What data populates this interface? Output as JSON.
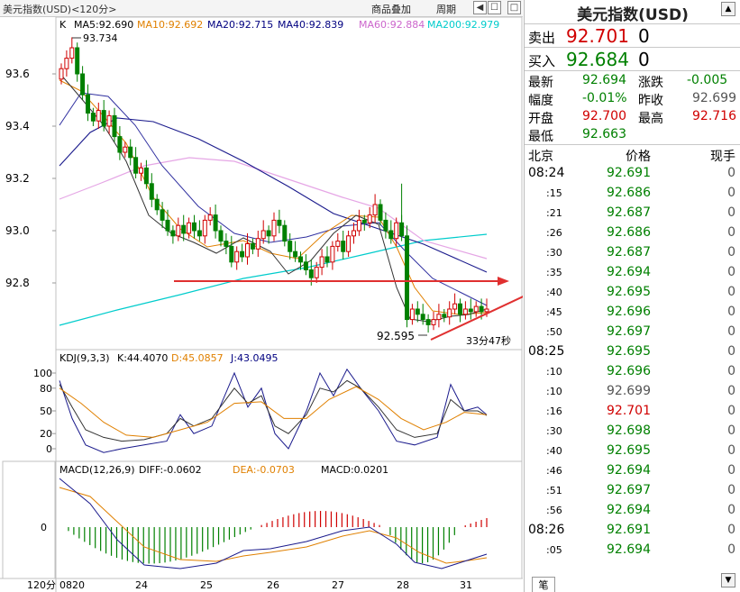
{
  "window": {
    "title": "美元指数(USD)<120分>",
    "overlay_button": "商品叠加",
    "period_button": "周期"
  },
  "main_chart": {
    "label": "K",
    "ma_legend": [
      {
        "text": "MA5:92.690",
        "color": "#000000"
      },
      {
        "text": "MA10:92.692",
        "color": "#e08000"
      },
      {
        "text": "MA20:92.715",
        "color": "#000080"
      },
      {
        "text": "MA40:92.839",
        "color": "#000080"
      },
      {
        "text": "MA60:92.884",
        "color": "#cc66cc"
      },
      {
        "text": "MA200:92.979",
        "color": "#00cccc"
      }
    ],
    "y_ticks": [
      "93.6",
      "93.4",
      "93.2",
      "93.0",
      "92.8"
    ],
    "high_annotation": "93.734",
    "low_annotation": "92.595",
    "countdown": "33分47秒"
  },
  "kdj": {
    "legend": [
      {
        "text": "KDJ(9,3,3)",
        "color": "#000000"
      },
      {
        "text": "K:44.4070",
        "color": "#000000"
      },
      {
        "text": "D:45.0857",
        "color": "#e08000"
      },
      {
        "text": "J:43.0495",
        "color": "#000080"
      }
    ],
    "y_ticks": [
      "100",
      "80",
      "50",
      "20",
      "0"
    ]
  },
  "macd": {
    "legend": [
      {
        "text": "MACD(12,26,9)",
        "color": "#000000"
      },
      {
        "text": "DIFF:-0.0602",
        "color": "#000000"
      },
      {
        "text": "DEA:-0.0703",
        "color": "#e08000"
      },
      {
        "text": "MACD:0.0201",
        "color": "#000000"
      }
    ],
    "y_ticks": [
      "0"
    ]
  },
  "x_axis": {
    "period_label": "120分",
    "dates": [
      "0820",
      "24",
      "25",
      "26",
      "27",
      "28",
      "31"
    ]
  },
  "quote_panel": {
    "title": "美元指数(USD)",
    "sell": {
      "label": "卖出",
      "price": "92.701",
      "volume": "0"
    },
    "buy": {
      "label": "买入",
      "price": "92.684",
      "volume": "0"
    },
    "stats": {
      "latest_label": "最新",
      "latest": "92.694",
      "change_label": "涨跌",
      "change": "-0.005",
      "amplitude_label": "幅度",
      "amplitude": "-0.01%",
      "prev_close_label": "昨收",
      "prev_close": "92.699",
      "open_label": "开盘",
      "open": "92.700",
      "high_label": "最高",
      "high": "92.716",
      "low_label": "最低",
      "low": "92.663"
    },
    "tick_header": {
      "time": "北京",
      "price": "价格",
      "volume": "现手"
    },
    "ticks": [
      {
        "time": "08:24",
        "price": "92.691",
        "volume": "0",
        "color": "green"
      },
      {
        "time": ":15",
        "price": "92.686",
        "volume": "0",
        "color": "green"
      },
      {
        "time": ":21",
        "price": "92.687",
        "volume": "0",
        "color": "green"
      },
      {
        "time": ":26",
        "price": "92.686",
        "volume": "0",
        "color": "green"
      },
      {
        "time": ":30",
        "price": "92.687",
        "volume": "0",
        "color": "green"
      },
      {
        "time": ":35",
        "price": "92.694",
        "volume": "0",
        "color": "green"
      },
      {
        "time": ":40",
        "price": "92.695",
        "volume": "0",
        "color": "green"
      },
      {
        "time": ":45",
        "price": "92.696",
        "volume": "0",
        "color": "green"
      },
      {
        "time": ":50",
        "price": "92.697",
        "volume": "0",
        "color": "green"
      },
      {
        "time": "08:25",
        "price": "92.695",
        "volume": "0",
        "color": "green"
      },
      {
        "time": ":10",
        "price": "92.696",
        "volume": "0",
        "color": "green"
      },
      {
        "time": ":10",
        "price": "92.699",
        "volume": "0",
        "color": "gray"
      },
      {
        "time": ":16",
        "price": "92.701",
        "volume": "0",
        "color": "red"
      },
      {
        "time": ":30",
        "price": "92.698",
        "volume": "0",
        "color": "green"
      },
      {
        "time": ":40",
        "price": "92.695",
        "volume": "0",
        "color": "green"
      },
      {
        "time": ":46",
        "price": "92.694",
        "volume": "0",
        "color": "green"
      },
      {
        "time": ":51",
        "price": "92.697",
        "volume": "0",
        "color": "green"
      },
      {
        "time": ":56",
        "price": "92.694",
        "volume": "0",
        "color": "green"
      },
      {
        "time": "08:26",
        "price": "92.691",
        "volume": "0",
        "color": "green"
      },
      {
        "time": ":05",
        "price": "92.694",
        "volume": "0",
        "color": "green"
      }
    ],
    "bottom_tab": "笔"
  },
  "colors": {
    "up_candle": "#d00000",
    "down_candle": "#008000",
    "accent_arrow": "#e03030",
    "price_green": "#008000",
    "price_red": "#d00000"
  }
}
